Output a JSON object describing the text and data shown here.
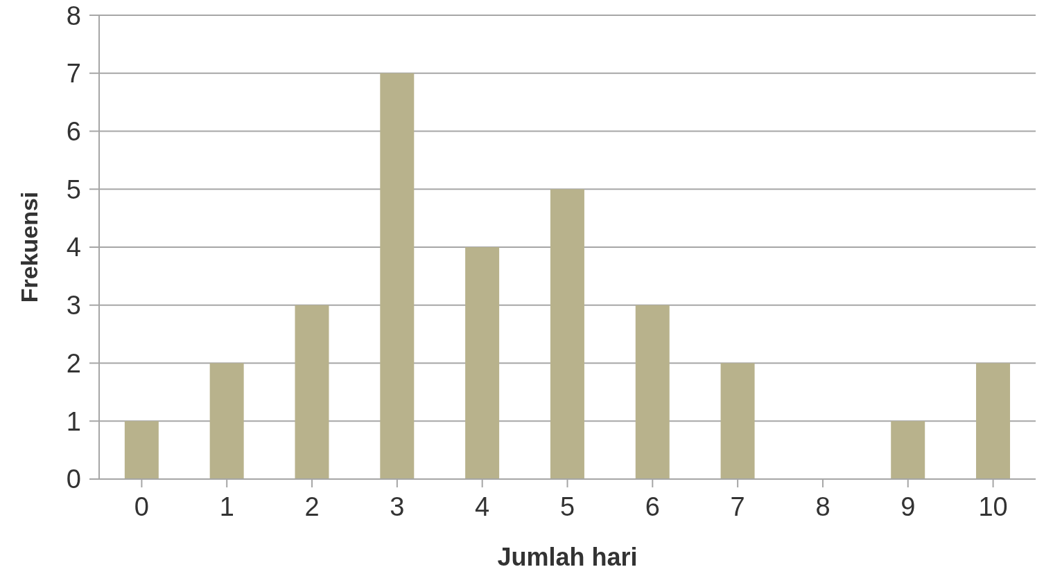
{
  "chart_data": {
    "type": "bar",
    "xlabel": "Jumlah hari",
    "ylabel": "Frekuensi",
    "categories": [
      "0",
      "1",
      "2",
      "3",
      "4",
      "5",
      "6",
      "7",
      "8",
      "9",
      "10"
    ],
    "values": [
      1,
      2,
      3,
      7,
      4,
      5,
      3,
      2,
      0,
      1,
      2
    ],
    "color": "#b8b28c",
    "ylim": [
      0,
      8
    ],
    "yticks": [
      0,
      1,
      2,
      3,
      4,
      5,
      6,
      7,
      8
    ],
    "grid": "y"
  }
}
